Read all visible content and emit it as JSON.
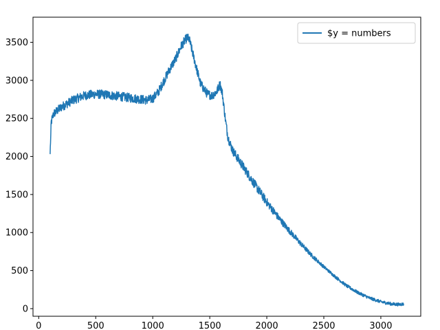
{
  "chart_data": {
    "type": "line",
    "title": "",
    "xlabel": "",
    "ylabel": "",
    "xlim": [
      -50,
      3350
    ],
    "ylim": [
      -100,
      3830
    ],
    "x_ticks": [
      0,
      500,
      1000,
      1500,
      2000,
      2500,
      3000
    ],
    "x_tick_labels": [
      "0",
      "500",
      "1000",
      "1500",
      "2000",
      "2500",
      "3000"
    ],
    "y_ticks": [
      0,
      500,
      1000,
      1500,
      2000,
      2500,
      3000,
      3500
    ],
    "y_tick_labels": [
      "0",
      "500",
      "1000",
      "1500",
      "2000",
      "2500",
      "3000",
      "3500"
    ],
    "grid": false,
    "legend_position": "upper-right",
    "series": [
      {
        "name": "$y = numbers",
        "color": "#1f77b4",
        "noise": 60,
        "x": [
          100,
          110,
          130,
          200,
          300,
          400,
          500,
          600,
          700,
          800,
          900,
          950,
          1000,
          1050,
          1100,
          1150,
          1200,
          1250,
          1280,
          1300,
          1320,
          1340,
          1380,
          1420,
          1480,
          1520,
          1560,
          1590,
          1610,
          1640,
          1660,
          1700,
          1800,
          1900,
          2000,
          2100,
          2200,
          2300,
          2400,
          2500,
          2600,
          2700,
          2800,
          2900,
          3000,
          3100,
          3150,
          3200
        ],
        "y": [
          2030,
          2450,
          2560,
          2650,
          2740,
          2800,
          2820,
          2810,
          2790,
          2770,
          2750,
          2740,
          2760,
          2850,
          3000,
          3150,
          3280,
          3450,
          3520,
          3560,
          3540,
          3420,
          3180,
          2950,
          2820,
          2800,
          2850,
          2950,
          2830,
          2450,
          2250,
          2080,
          1850,
          1620,
          1400,
          1200,
          1020,
          850,
          690,
          550,
          420,
          300,
          210,
          140,
          90,
          60,
          55,
          60
        ]
      }
    ]
  }
}
